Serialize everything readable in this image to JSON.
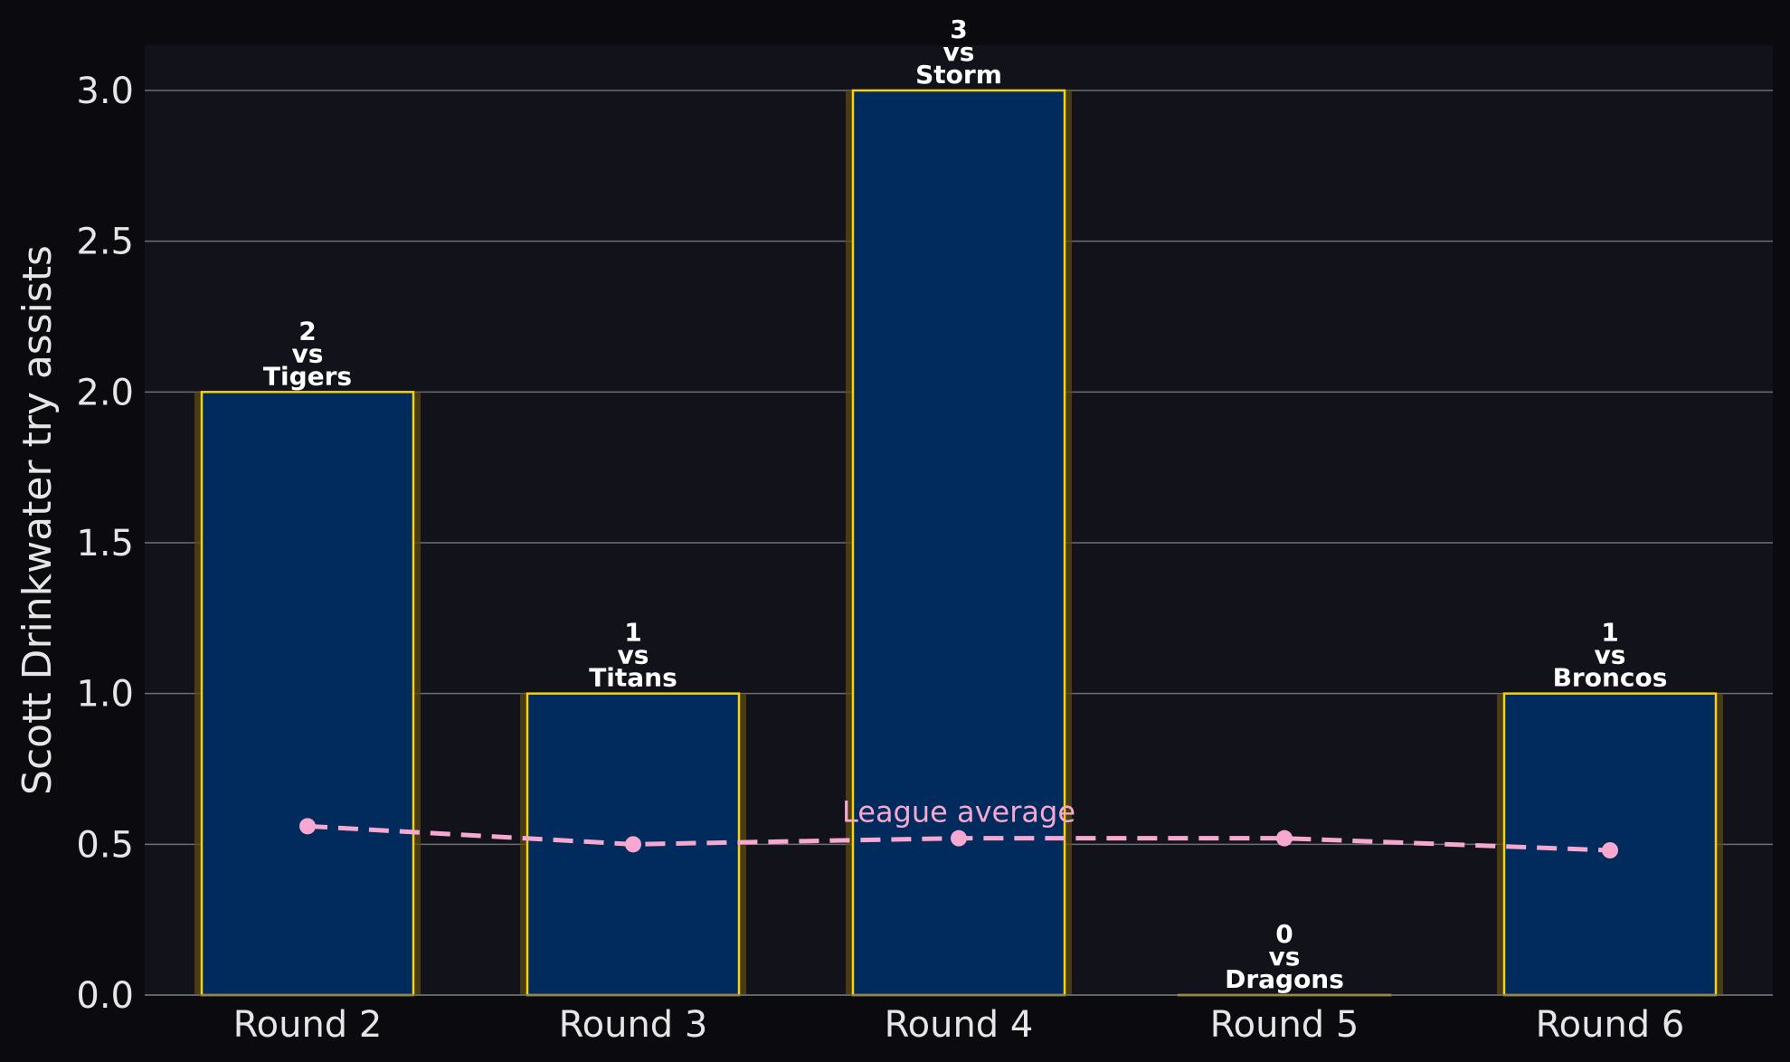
{
  "chart_data": {
    "type": "bar",
    "ylabel": "Scott Drinkwater try assists",
    "ylim": [
      0,
      3.15
    ],
    "yticks": [
      "0.0",
      "0.5",
      "1.0",
      "1.5",
      "2.0",
      "2.5",
      "3.0"
    ],
    "grid": true,
    "categories": [
      "Round 2",
      "Round 3",
      "Round 4",
      "Round 5",
      "Round 6"
    ],
    "series": [
      {
        "values": [
          2,
          1,
          3,
          0,
          1
        ]
      },
      {
        "name": "League average",
        "type": "line",
        "values": [
          0.56,
          0.5,
          0.52,
          0.52,
          0.48
        ]
      }
    ],
    "bar_labels": [
      [
        "2",
        "vs",
        "Tigers"
      ],
      [
        "1",
        "vs",
        "Titans"
      ],
      [
        "3",
        "vs",
        "Storm"
      ],
      [
        "0",
        "vs",
        "Dragons"
      ],
      [
        "1",
        "vs",
        "Broncos"
      ]
    ],
    "colors": {
      "bar_fill": "#002b5c",
      "bar_edge": "#f5d10f",
      "bar_glow": "#5c4a10",
      "average_line": "#f7a8d0",
      "plot_bg": "#12131a",
      "page_bg": "#0b0b0f",
      "grid": "#6e6e72",
      "text": "#e6e6e6"
    }
  }
}
